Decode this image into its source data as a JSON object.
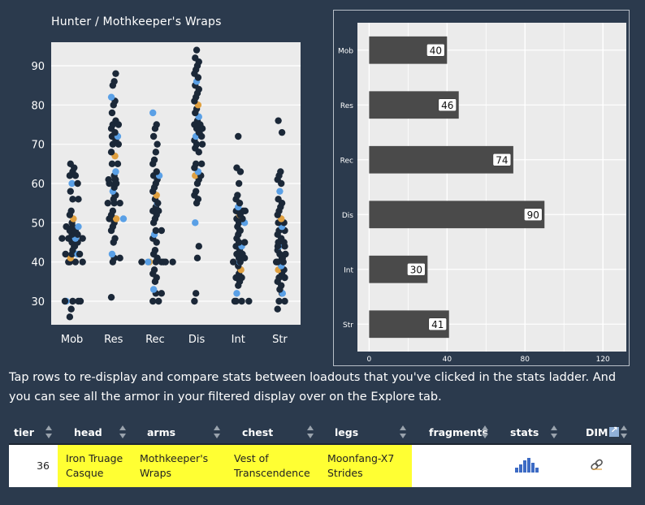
{
  "strip_plot": {
    "title": "Hunter / Mothkeeper's Wraps"
  },
  "description": "Tap rows to re-display and compare stats between loadouts that you've clicked in the stats ladder. And you can see all the armor in your filtered display over on the Explore tab.",
  "chart_data": [
    {
      "type": "scatter",
      "title": "Hunter / Mothkeeper's Wraps",
      "categories": [
        "Mob",
        "Res",
        "Rec",
        "Dis",
        "Int",
        "Str"
      ],
      "yticks": [
        30,
        40,
        50,
        60,
        70,
        80,
        90
      ],
      "ylim": [
        24,
        96
      ],
      "grid": true,
      "point_colors": {
        "default": "#1b2838",
        "highlight": "#5aa0e6",
        "selected": "#e0a040"
      },
      "series": [
        {
          "name": "Mob",
          "values": [
            26,
            28,
            30,
            30,
            30,
            30,
            30,
            40,
            40,
            40,
            40,
            41,
            42,
            42,
            42,
            42,
            43,
            44,
            44,
            45,
            45,
            46,
            46,
            46,
            46,
            46,
            47,
            47,
            48,
            48,
            49,
            49,
            49,
            50,
            51,
            52,
            53,
            56,
            56,
            58,
            60,
            60,
            62,
            62,
            63,
            64,
            65
          ]
        },
        {
          "name": "Res",
          "values": [
            31,
            40,
            41,
            41,
            42,
            45,
            46,
            48,
            49,
            50,
            51,
            51,
            51,
            51,
            52,
            53,
            55,
            55,
            55,
            56,
            57,
            57,
            58,
            59,
            60,
            60,
            60,
            61,
            61,
            61,
            62,
            63,
            65,
            65,
            67,
            68,
            70,
            70,
            71,
            72,
            72,
            73,
            74,
            75,
            75,
            76,
            78,
            80,
            81,
            82,
            85,
            86,
            88
          ]
        },
        {
          "name": "Rec",
          "values": [
            30,
            30,
            32,
            32,
            33,
            35,
            36,
            37,
            38,
            40,
            40,
            40,
            40,
            40,
            40,
            40,
            40,
            41,
            42,
            43,
            45,
            46,
            47,
            48,
            48,
            50,
            51,
            52,
            53,
            53,
            54,
            55,
            55,
            56,
            57,
            58,
            59,
            60,
            61,
            62,
            62,
            63,
            65,
            66,
            68,
            70,
            72,
            74,
            75,
            78
          ]
        },
        {
          "name": "Dis",
          "values": [
            30,
            32,
            41,
            44,
            50,
            55,
            56,
            57,
            58,
            60,
            61,
            62,
            62,
            63,
            64,
            65,
            65,
            68,
            69,
            70,
            70,
            71,
            72,
            72,
            73,
            73,
            74,
            74,
            75,
            75,
            76,
            77,
            78,
            79,
            80,
            81,
            82,
            83,
            84,
            85,
            86,
            87,
            88,
            89,
            90,
            91,
            92,
            94
          ]
        },
        {
          "name": "Int",
          "values": [
            30,
            30,
            30,
            30,
            32,
            34,
            35,
            36,
            36,
            37,
            38,
            38,
            39,
            40,
            40,
            40,
            41,
            41,
            42,
            42,
            43,
            44,
            44,
            45,
            45,
            46,
            47,
            48,
            48,
            49,
            50,
            50,
            51,
            51,
            52,
            52,
            53,
            53,
            53,
            53,
            54,
            55,
            56,
            57,
            60,
            63,
            64,
            72
          ]
        },
        {
          "name": "Str",
          "values": [
            28,
            30,
            30,
            32,
            32,
            33,
            34,
            35,
            36,
            36,
            37,
            38,
            38,
            39,
            40,
            40,
            40,
            41,
            41,
            42,
            42,
            43,
            44,
            44,
            44,
            45,
            45,
            46,
            47,
            48,
            48,
            49,
            50,
            50,
            51,
            52,
            53,
            54,
            55,
            56,
            58,
            60,
            61,
            62,
            63,
            73,
            76
          ]
        }
      ]
    },
    {
      "type": "bar",
      "orientation": "horizontal",
      "categories": [
        "Mob",
        "Res",
        "Rec",
        "Dis",
        "Int",
        "Str"
      ],
      "values": [
        40,
        46,
        74,
        90,
        30,
        41
      ],
      "xticks": [
        0,
        40,
        80,
        120
      ],
      "xlim": [
        -6,
        132
      ],
      "bar_color": "#4a4a4a",
      "grid": true
    }
  ],
  "table": {
    "headers": {
      "tier": "tier",
      "head": "head",
      "arms": "arms",
      "chest": "chest",
      "legs": "legs",
      "fragments": "fragments",
      "stats": "stats",
      "dim": "DIM"
    },
    "rows": [
      {
        "tier": "36",
        "head": "Iron Truage Casque",
        "arms": "Mothkeeper's Wraps",
        "chest": "Vest of Transcendence",
        "legs": "Moonfang-X7 Strides",
        "fragments": "",
        "stats_icon": "bar-chart-icon",
        "dim_icon": "link-icon"
      }
    ]
  }
}
